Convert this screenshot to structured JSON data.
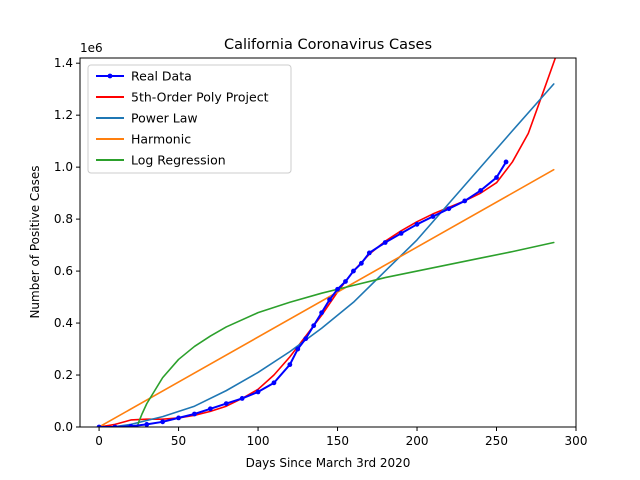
{
  "chart_data": {
    "type": "line",
    "title": "California Coronavirus Cases",
    "xlabel": "Days Since March 3rd 2020",
    "ylabel": "Number of Positive Cases",
    "y_offset_text": "1e6",
    "xlim": [
      -12,
      300
    ],
    "ylim": [
      0,
      1.42
    ],
    "x_ticks": [
      0,
      50,
      100,
      150,
      200,
      250,
      300
    ],
    "x_tick_labels": [
      "0",
      "50",
      "100",
      "150",
      "200",
      "250",
      "300"
    ],
    "y_ticks": [
      0,
      0.2,
      0.4,
      0.6,
      0.8,
      1.0,
      1.2,
      1.4
    ],
    "y_tick_labels": [
      "0.0",
      "0.2",
      "0.4",
      "0.6",
      "0.8",
      "1.0",
      "1.2",
      "1.4"
    ],
    "grid": false,
    "legend_position": "top-left",
    "series": [
      {
        "name": "Real Data",
        "color": "#0000ff",
        "marker": "dot",
        "x": [
          0,
          10,
          20,
          30,
          40,
          50,
          60,
          70,
          80,
          90,
          100,
          110,
          120,
          125,
          130,
          135,
          140,
          145,
          150,
          155,
          160,
          165,
          170,
          180,
          190,
          200,
          210,
          220,
          230,
          240,
          250,
          256
        ],
        "y": [
          0.0,
          0.0,
          0.003,
          0.01,
          0.02,
          0.035,
          0.05,
          0.07,
          0.09,
          0.11,
          0.135,
          0.17,
          0.24,
          0.3,
          0.34,
          0.39,
          0.44,
          0.49,
          0.53,
          0.56,
          0.6,
          0.63,
          0.67,
          0.71,
          0.745,
          0.78,
          0.81,
          0.84,
          0.87,
          0.91,
          0.96,
          1.02
        ]
      },
      {
        "name": "5th-Order Poly Project",
        "color": "#ff0000",
        "x": [
          0,
          10,
          20,
          30,
          40,
          50,
          60,
          70,
          80,
          90,
          100,
          110,
          120,
          130,
          140,
          150,
          160,
          170,
          180,
          190,
          200,
          210,
          220,
          230,
          240,
          250,
          260,
          270,
          280,
          287
        ],
        "y": [
          0.0,
          0.01,
          0.027,
          0.03,
          0.03,
          0.035,
          0.045,
          0.06,
          0.08,
          0.11,
          0.145,
          0.2,
          0.27,
          0.35,
          0.43,
          0.52,
          0.6,
          0.665,
          0.715,
          0.755,
          0.79,
          0.82,
          0.845,
          0.87,
          0.9,
          0.94,
          1.02,
          1.13,
          1.3,
          1.42
        ]
      },
      {
        "name": "Power Law",
        "color": "#1f77b4",
        "x": [
          8,
          20,
          40,
          60,
          80,
          100,
          120,
          140,
          160,
          180,
          200,
          220,
          240,
          260,
          286
        ],
        "y": [
          0.0,
          0.01,
          0.04,
          0.08,
          0.14,
          0.21,
          0.29,
          0.38,
          0.48,
          0.6,
          0.72,
          0.86,
          1.0,
          1.14,
          1.32
        ]
      },
      {
        "name": "Harmonic",
        "color": "#ff7f0e",
        "x": [
          0,
          286
        ],
        "y": [
          0.0,
          0.99
        ]
      },
      {
        "name": "Log Regression",
        "color": "#2ca02c",
        "x": [
          24,
          25,
          27,
          30,
          35,
          40,
          50,
          60,
          70,
          80,
          100,
          120,
          140,
          160,
          180,
          200,
          220,
          240,
          260,
          286
        ],
        "y": [
          0.0,
          0.02,
          0.05,
          0.09,
          0.14,
          0.19,
          0.26,
          0.31,
          0.35,
          0.385,
          0.44,
          0.48,
          0.515,
          0.545,
          0.575,
          0.6,
          0.625,
          0.65,
          0.675,
          0.71
        ]
      }
    ]
  }
}
